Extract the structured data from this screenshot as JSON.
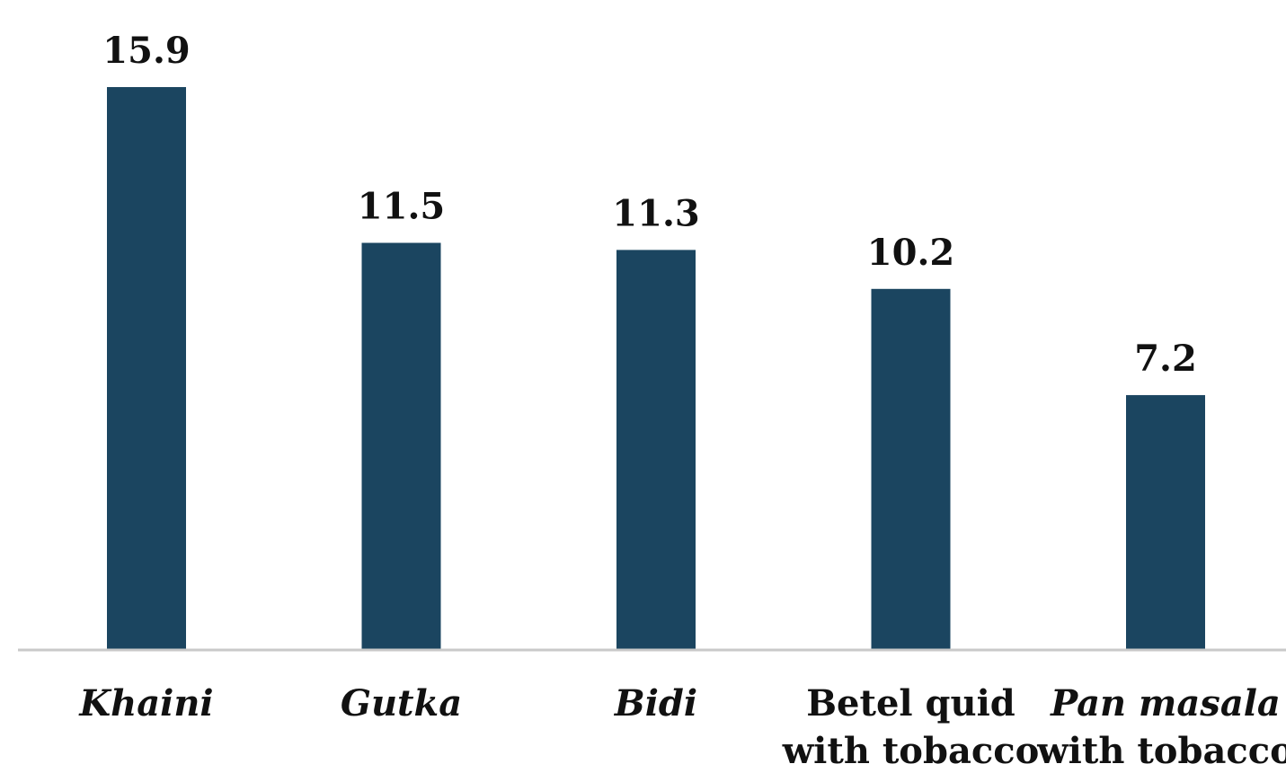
{
  "chart_data": {
    "type": "bar",
    "categories": [
      [
        "Khaini"
      ],
      [
        "Gutka"
      ],
      [
        "Bidi"
      ],
      [
        "Betel quid",
        "with tobacco"
      ],
      [
        "Pan masala",
        "with tobacco"
      ]
    ],
    "category_italic": [
      [
        true
      ],
      [
        true
      ],
      [
        true
      ],
      [
        false,
        false
      ],
      [
        true,
        false
      ]
    ],
    "values": [
      15.9,
      11.5,
      11.3,
      10.2,
      7.2
    ],
    "value_labels": [
      "15.9",
      "11.5",
      "11.3",
      "10.2",
      "7.2"
    ],
    "title": "",
    "xlabel": "",
    "ylabel": "",
    "ylim": [
      0,
      15.9
    ],
    "grid": false,
    "legend": "none",
    "colors": {
      "bar": "#1b4560",
      "axis": "#c9c9c9",
      "text": "#111111"
    }
  }
}
